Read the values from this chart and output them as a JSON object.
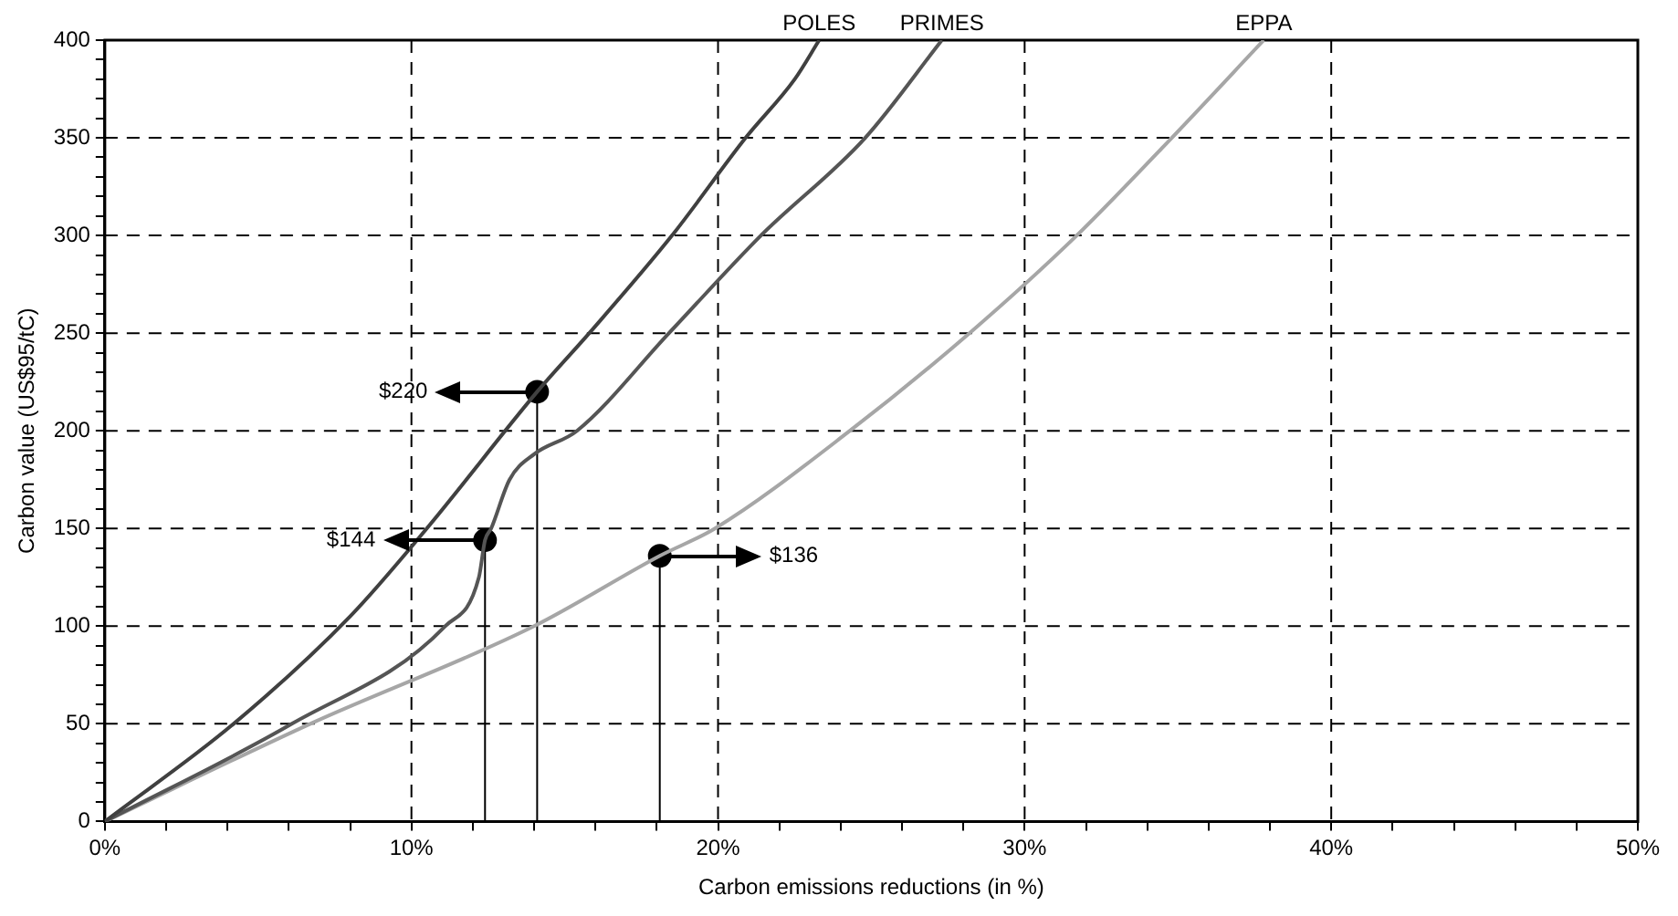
{
  "chart_data": {
    "type": "line",
    "xlabel": "Carbon emissions reductions (in %)",
    "ylabel": "Carbon value (US$95/tC)",
    "xlim": [
      0,
      50
    ],
    "xticks": [
      {
        "value": 0,
        "label": "0%"
      },
      {
        "value": 2,
        "label": null
      },
      {
        "value": 4,
        "label": null
      },
      {
        "value": 6,
        "label": null
      },
      {
        "value": 8,
        "label": null
      },
      {
        "value": 10,
        "label": "10%"
      },
      {
        "value": 12,
        "label": null
      },
      {
        "value": 14,
        "label": null
      },
      {
        "value": 16,
        "label": null
      },
      {
        "value": 18,
        "label": null
      },
      {
        "value": 20,
        "label": "20%"
      },
      {
        "value": 22,
        "label": null
      },
      {
        "value": 24,
        "label": null
      },
      {
        "value": 26,
        "label": null
      },
      {
        "value": 28,
        "label": null
      },
      {
        "value": 30,
        "label": "30%"
      },
      {
        "value": 32,
        "label": null
      },
      {
        "value": 34,
        "label": null
      },
      {
        "value": 36,
        "label": null
      },
      {
        "value": 38,
        "label": null
      },
      {
        "value": 40,
        "label": "40%"
      },
      {
        "value": 42,
        "label": null
      },
      {
        "value": 44,
        "label": null
      },
      {
        "value": 46,
        "label": null
      },
      {
        "value": 48,
        "label": null
      },
      {
        "value": 50,
        "label": "50%"
      }
    ],
    "ylim": [
      0,
      400
    ],
    "yticks": [
      0,
      {
        "value": 10,
        "label": null
      },
      {
        "value": 20,
        "label": null
      },
      {
        "value": 30,
        "label": null
      },
      {
        "value": 40,
        "label": null
      },
      50,
      {
        "value": 60,
        "label": null
      },
      {
        "value": 70,
        "label": null
      },
      {
        "value": 80,
        "label": null
      },
      {
        "value": 90,
        "label": null
      },
      100,
      {
        "value": 110,
        "label": null
      },
      {
        "value": 120,
        "label": null
      },
      {
        "value": 130,
        "label": null
      },
      {
        "value": 140,
        "label": null
      },
      150,
      {
        "value": 160,
        "label": null
      },
      {
        "value": 170,
        "label": null
      },
      {
        "value": 180,
        "label": null
      },
      {
        "value": 190,
        "label": null
      },
      200,
      {
        "value": 210,
        "label": null
      },
      {
        "value": 220,
        "label": null
      },
      {
        "value": 230,
        "label": null
      },
      {
        "value": 240,
        "label": null
      },
      250,
      {
        "value": 260,
        "label": null
      },
      {
        "value": 270,
        "label": null
      },
      {
        "value": 280,
        "label": null
      },
      {
        "value": 290,
        "label": null
      },
      300,
      {
        "value": 310,
        "label": null
      },
      {
        "value": 320,
        "label": null
      },
      {
        "value": 330,
        "label": null
      },
      {
        "value": 340,
        "label": null
      },
      350,
      {
        "value": 360,
        "label": null
      },
      {
        "value": 370,
        "label": null
      },
      {
        "value": 380,
        "label": null
      },
      {
        "value": 390,
        "label": null
      },
      400
    ],
    "grid": true,
    "legend": false,
    "marker": "none",
    "line_style": "solid",
    "series": [
      {
        "name": "POLES",
        "color": "#404040",
        "x": [
          0,
          4.2,
          8,
          10.5,
          14.1,
          15.8,
          18.5,
          20.9,
          22.5,
          23.3
        ],
        "values": [
          0,
          50,
          105,
          150,
          220,
          250,
          300,
          350,
          380,
          400
        ]
      },
      {
        "name": "PRIMES",
        "color": "#555555",
        "x": [
          0,
          6.1,
          11.1,
          12.2,
          12.4,
          12.6,
          13.2,
          14,
          15.4,
          18.4,
          21.4,
          24.8,
          27.3
        ],
        "values": [
          0,
          50,
          100,
          125,
          144,
          150,
          175,
          188,
          200,
          250,
          300,
          350,
          400
        ]
      },
      {
        "name": "EPPA",
        "color": "#a6a6a6",
        "x": [
          0,
          6.7,
          14,
          18.1,
          19.9,
          24.3,
          28.2,
          31.7,
          34.8,
          37.8
        ],
        "values": [
          0,
          50,
          100,
          136,
          150,
          200,
          250,
          300,
          350,
          400
        ]
      },
      {
        "type": "line",
        "color": "#000000",
        "x": [
          14.1,
          14.1
        ],
        "values": [
          0,
          220
        ]
      },
      {
        "type": "line",
        "color": "#000000",
        "x": [
          12.4,
          12.4
        ],
        "values": [
          0,
          144
        ]
      },
      {
        "type": "line",
        "color": "#000000",
        "x": [
          18.1,
          18.1
        ],
        "values": [
          0,
          136
        ]
      },
      {
        "type": "scatter",
        "color": "#000000",
        "marker": "circle",
        "x": [
          14.1,
          12.4,
          18.1
        ],
        "values": [
          220,
          144,
          136
        ]
      }
    ],
    "annotations": [
      "$220",
      "$144",
      "$136"
    ]
  }
}
